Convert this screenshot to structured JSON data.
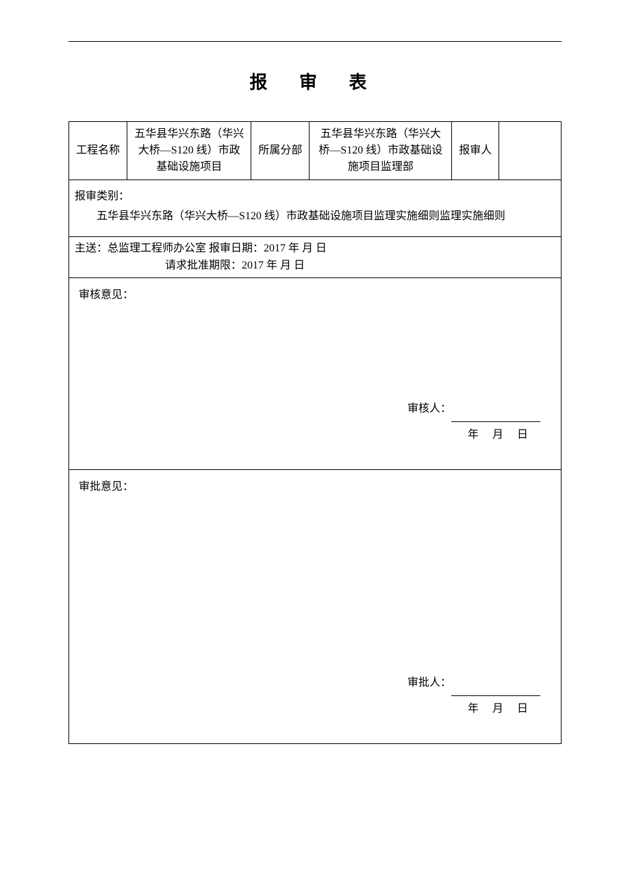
{
  "title": "报 审 表",
  "header": {
    "project_name_label": "工程名称",
    "project_name_value": "五华县华兴东路（华兴大桥—S120 线）市政基础设施项目",
    "division_label": "所属分部",
    "division_value": "五华县华兴东路（华兴大桥—S120 线）市政基础设施项目监理部",
    "submitter_label": "报审人",
    "submitter_value": ""
  },
  "category": {
    "label": "报审类别：",
    "content": "五华县华兴东路（华兴大桥—S120 线）市政基础设施项目监理实施细则监理实施细则"
  },
  "dispatch": {
    "line1": "主送：总监理工程师办公室      报审日期：2017 年  月    日",
    "line2_label": "请求批准期限：2017 年  月    日"
  },
  "review": {
    "label": "审核意见：",
    "signer_label": "审核人：",
    "date_label": "年  月  日"
  },
  "approval": {
    "label": "审批意见：",
    "signer_label": "审批人：",
    "date_label": "年  月  日"
  }
}
